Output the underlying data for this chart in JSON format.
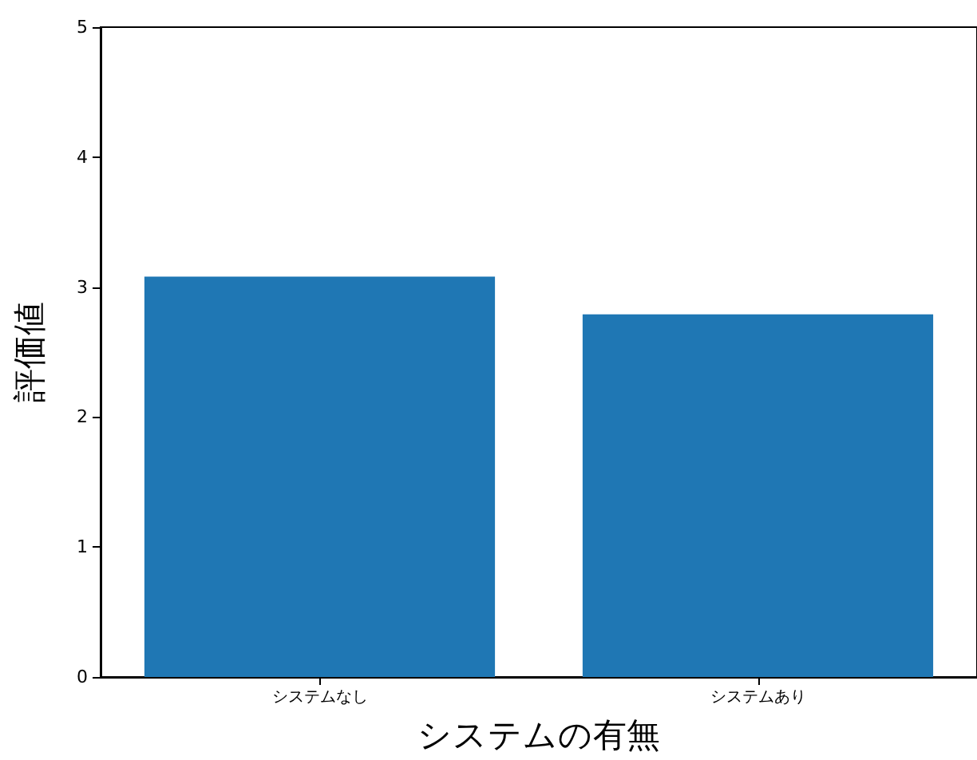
{
  "chart_data": {
    "type": "bar",
    "xlabel": "システムの有無",
    "ylabel": "評価値",
    "categories": [
      "システムなし",
      "システムあり"
    ],
    "values": [
      3.08,
      2.79
    ],
    "color": "#1f77b4",
    "ylim": [
      0,
      5
    ],
    "yticks": [
      0,
      1,
      2,
      3,
      4,
      5
    ],
    "grid": false
  }
}
